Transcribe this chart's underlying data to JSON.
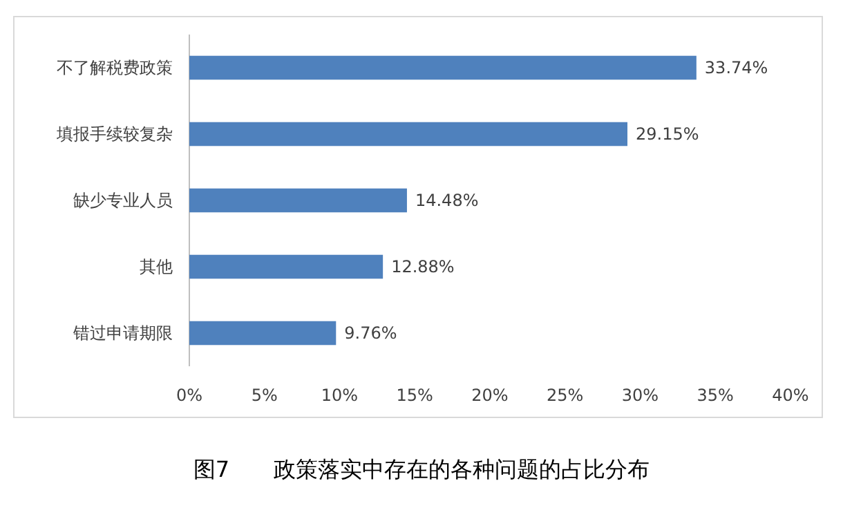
{
  "chart_data": {
    "type": "bar",
    "orientation": "horizontal",
    "title": "图7　　政策落实中存在的各种问题的占比分布",
    "categories": [
      "不了解税费政策",
      "填报手续较复杂",
      "缺少专业人员",
      "其他",
      "错过申请期限"
    ],
    "values": [
      33.74,
      29.15,
      14.48,
      12.88,
      9.76
    ],
    "value_labels": [
      "33.74%",
      "29.15%",
      "14.48%",
      "12.88%",
      "9.76%"
    ],
    "color": "#4f81bd",
    "xlim": [
      0,
      40
    ],
    "xticks": [
      {
        "value": 0,
        "label": "0%"
      },
      {
        "value": 5,
        "label": "5%"
      },
      {
        "value": 10,
        "label": "10%"
      },
      {
        "value": 15,
        "label": "15%"
      },
      {
        "value": 20,
        "label": "20%"
      },
      {
        "value": 25,
        "label": "25%"
      },
      {
        "value": 30,
        "label": "30%"
      },
      {
        "value": 35,
        "label": "35%"
      },
      {
        "value": 40,
        "label": "40%"
      }
    ],
    "grid": false
  }
}
